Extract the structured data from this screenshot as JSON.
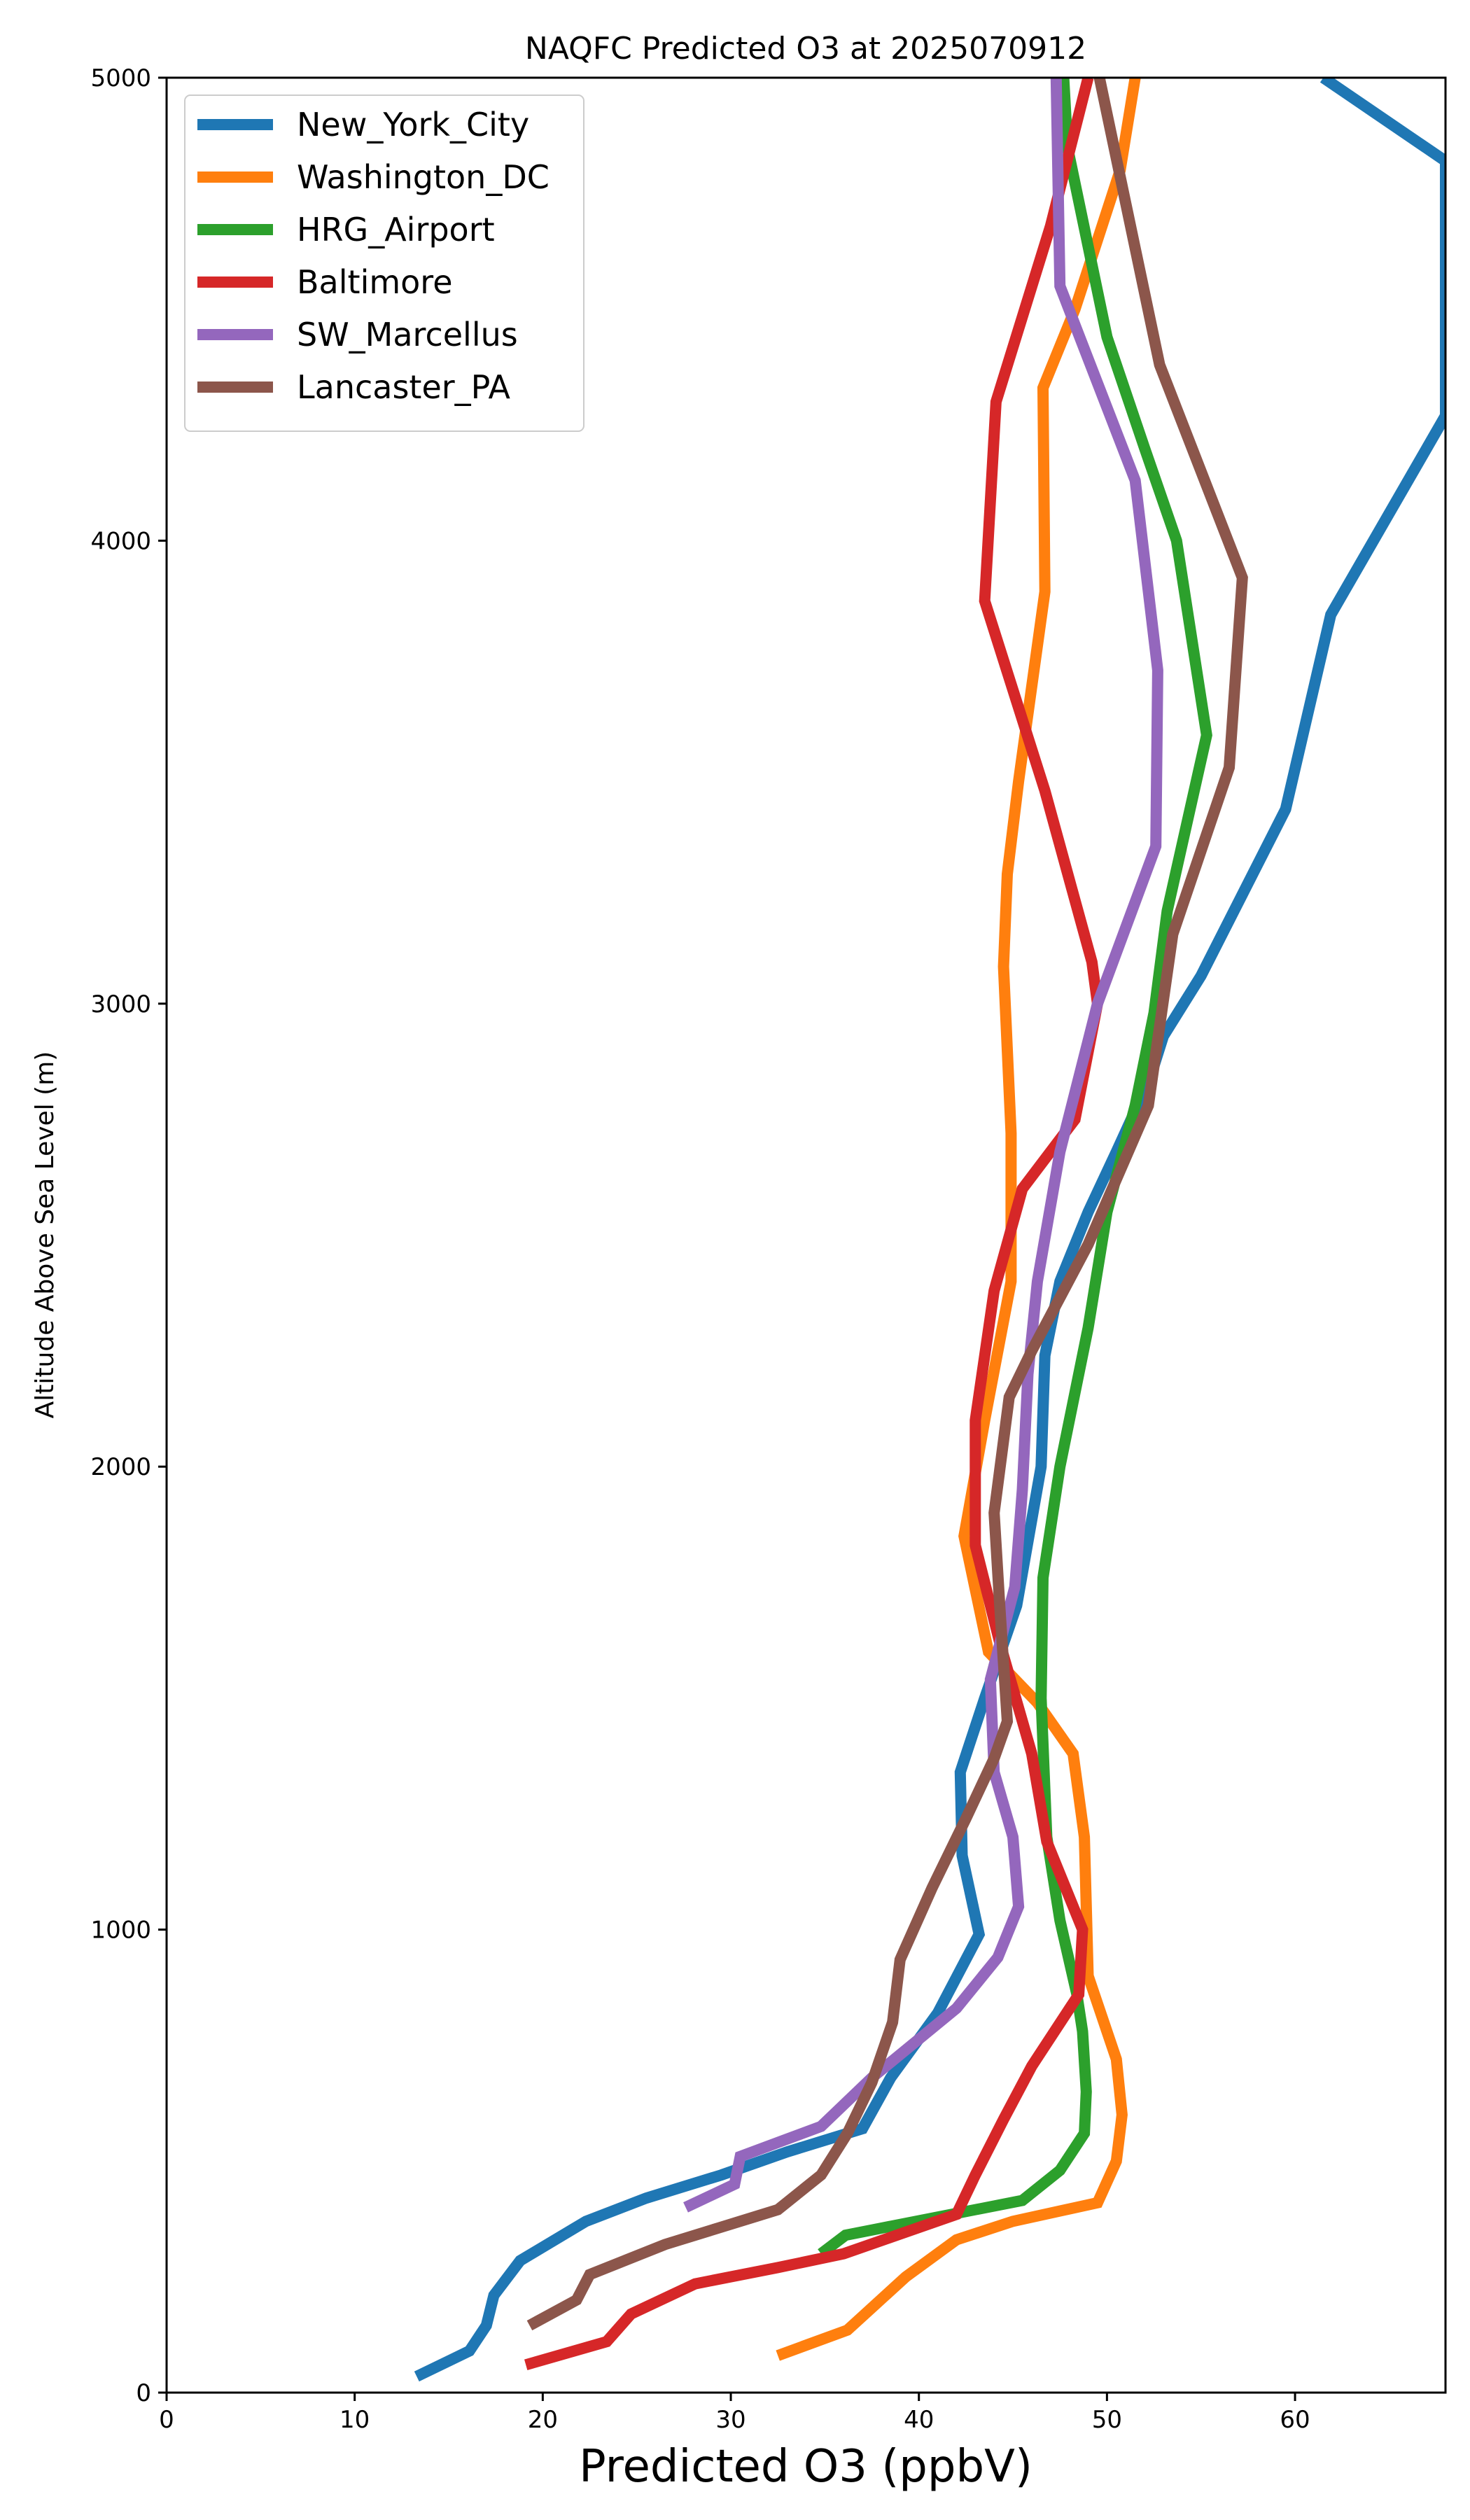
{
  "chart_data": {
    "type": "line",
    "title": "NAQFC Predicted O3 at 2025070912",
    "xlabel": "Predicted O3 (ppbV)",
    "ylabel": "Altitude Above Sea Level (m)",
    "xlim": [
      0,
      68
    ],
    "ylim": [
      0,
      5000
    ],
    "xticks": [
      0,
      10,
      20,
      30,
      40,
      50,
      60
    ],
    "yticks": [
      0,
      1000,
      2000,
      3000,
      4000,
      5000
    ],
    "grid": false,
    "legend_position": "top-left",
    "series": [
      {
        "name": "New_York_City",
        "color": "#1f77b4",
        "points": [
          [
            13.3,
            35
          ],
          [
            16.1,
            90
          ],
          [
            17.0,
            145
          ],
          [
            17.4,
            210
          ],
          [
            18.8,
            285
          ],
          [
            22.3,
            370
          ],
          [
            25.5,
            420
          ],
          [
            29.5,
            470
          ],
          [
            33.0,
            520
          ],
          [
            37.0,
            570
          ],
          [
            38.5,
            680
          ],
          [
            41.0,
            820
          ],
          [
            43.2,
            990
          ],
          [
            42.3,
            1160
          ],
          [
            42.2,
            1340
          ],
          [
            43.5,
            1500
          ],
          [
            45.2,
            1700
          ],
          [
            46.5,
            2000
          ],
          [
            46.7,
            2240
          ],
          [
            47.5,
            2400
          ],
          [
            49.0,
            2550
          ],
          [
            50.5,
            2680
          ],
          [
            52.3,
            2840
          ],
          [
            53.0,
            2930
          ],
          [
            55.0,
            3060
          ],
          [
            59.5,
            3420
          ],
          [
            61.9,
            3840
          ],
          [
            68.0,
            4270
          ],
          [
            68.0,
            4820
          ],
          [
            61.5,
            5000
          ]
        ]
      },
      {
        "name": "Washington_DC",
        "color": "#ff7f0e",
        "points": [
          [
            32.5,
            80
          ],
          [
            36.2,
            135
          ],
          [
            39.3,
            250
          ],
          [
            42.0,
            330
          ],
          [
            45.0,
            370
          ],
          [
            49.5,
            410
          ],
          [
            50.5,
            500
          ],
          [
            50.8,
            600
          ],
          [
            50.5,
            720
          ],
          [
            49.0,
            900
          ],
          [
            48.8,
            1200
          ],
          [
            48.2,
            1380
          ],
          [
            46.3,
            1490
          ],
          [
            43.7,
            1600
          ],
          [
            42.4,
            1850
          ],
          [
            43.5,
            2100
          ],
          [
            44.9,
            2400
          ],
          [
            44.9,
            2720
          ],
          [
            44.5,
            3080
          ],
          [
            44.7,
            3280
          ],
          [
            45.3,
            3480
          ],
          [
            46.7,
            3890
          ],
          [
            46.6,
            4330
          ],
          [
            48.3,
            4500
          ],
          [
            50.7,
            4800
          ],
          [
            51.5,
            5000
          ]
        ]
      },
      {
        "name": "HRG_Airport",
        "color": "#2ca02c",
        "points": [
          [
            34.8,
            300
          ],
          [
            36.1,
            340
          ],
          [
            45.5,
            415
          ],
          [
            47.5,
            480
          ],
          [
            48.8,
            560
          ],
          [
            48.9,
            650
          ],
          [
            48.7,
            780
          ],
          [
            48.4,
            860
          ],
          [
            47.5,
            1020
          ],
          [
            46.8,
            1200
          ],
          [
            46.5,
            1500
          ],
          [
            46.6,
            1760
          ],
          [
            47.5,
            2000
          ],
          [
            49.0,
            2300
          ],
          [
            50.0,
            2550
          ],
          [
            51.5,
            2780
          ],
          [
            52.5,
            2980
          ],
          [
            53.2,
            3200
          ],
          [
            55.3,
            3580
          ],
          [
            53.7,
            4000
          ],
          [
            52.0,
            4200
          ],
          [
            50.0,
            4440
          ],
          [
            47.9,
            4850
          ],
          [
            47.7,
            5000
          ]
        ]
      },
      {
        "name": "Baltimore",
        "color": "#d62728",
        "points": [
          [
            19.1,
            60
          ],
          [
            23.4,
            110
          ],
          [
            24.7,
            170
          ],
          [
            28.1,
            235
          ],
          [
            32.5,
            270
          ],
          [
            36.0,
            300
          ],
          [
            42.0,
            385
          ],
          [
            43.0,
            470
          ],
          [
            44.5,
            590
          ],
          [
            46.0,
            705
          ],
          [
            48.5,
            860
          ],
          [
            48.7,
            1000
          ],
          [
            46.8,
            1190
          ],
          [
            46.0,
            1380
          ],
          [
            44.3,
            1620
          ],
          [
            43.0,
            1830
          ],
          [
            43.0,
            2100
          ],
          [
            44.0,
            2380
          ],
          [
            45.5,
            2600
          ],
          [
            48.3,
            2750
          ],
          [
            49.5,
            3000
          ],
          [
            49.2,
            3090
          ],
          [
            46.7,
            3460
          ],
          [
            43.5,
            3870
          ],
          [
            44.1,
            4300
          ],
          [
            47.0,
            4680
          ],
          [
            49.0,
            5000
          ]
        ]
      },
      {
        "name": "SW_Marcellus",
        "color": "#9467bd",
        "points": [
          [
            27.6,
            400
          ],
          [
            30.2,
            450
          ],
          [
            30.5,
            510
          ],
          [
            34.8,
            575
          ],
          [
            37.5,
            680
          ],
          [
            42.0,
            830
          ],
          [
            44.2,
            940
          ],
          [
            45.3,
            1050
          ],
          [
            45.0,
            1200
          ],
          [
            44.0,
            1340
          ],
          [
            43.8,
            1540
          ],
          [
            45.1,
            1740
          ],
          [
            45.5,
            1950
          ],
          [
            45.8,
            2200
          ],
          [
            46.3,
            2400
          ],
          [
            47.5,
            2680
          ],
          [
            49.5,
            3000
          ],
          [
            52.6,
            3340
          ],
          [
            52.7,
            3720
          ],
          [
            51.5,
            4130
          ],
          [
            47.5,
            4550
          ],
          [
            47.3,
            5000
          ]
        ]
      },
      {
        "name": "Lancaster_PA",
        "color": "#8c564b",
        "points": [
          [
            19.3,
            145
          ],
          [
            21.8,
            200
          ],
          [
            22.5,
            255
          ],
          [
            26.5,
            320
          ],
          [
            32.5,
            395
          ],
          [
            34.8,
            470
          ],
          [
            36.2,
            560
          ],
          [
            37.5,
            670
          ],
          [
            38.6,
            800
          ],
          [
            39.0,
            935
          ],
          [
            40.7,
            1090
          ],
          [
            42.5,
            1240
          ],
          [
            44.0,
            1370
          ],
          [
            44.7,
            1450
          ],
          [
            44.3,
            1700
          ],
          [
            44.0,
            1900
          ],
          [
            44.8,
            2150
          ],
          [
            46.0,
            2250
          ],
          [
            49.0,
            2480
          ],
          [
            52.2,
            2780
          ],
          [
            53.5,
            3150
          ],
          [
            56.5,
            3510
          ],
          [
            57.2,
            3920
          ],
          [
            52.8,
            4380
          ],
          [
            49.6,
            5000
          ]
        ]
      }
    ]
  }
}
